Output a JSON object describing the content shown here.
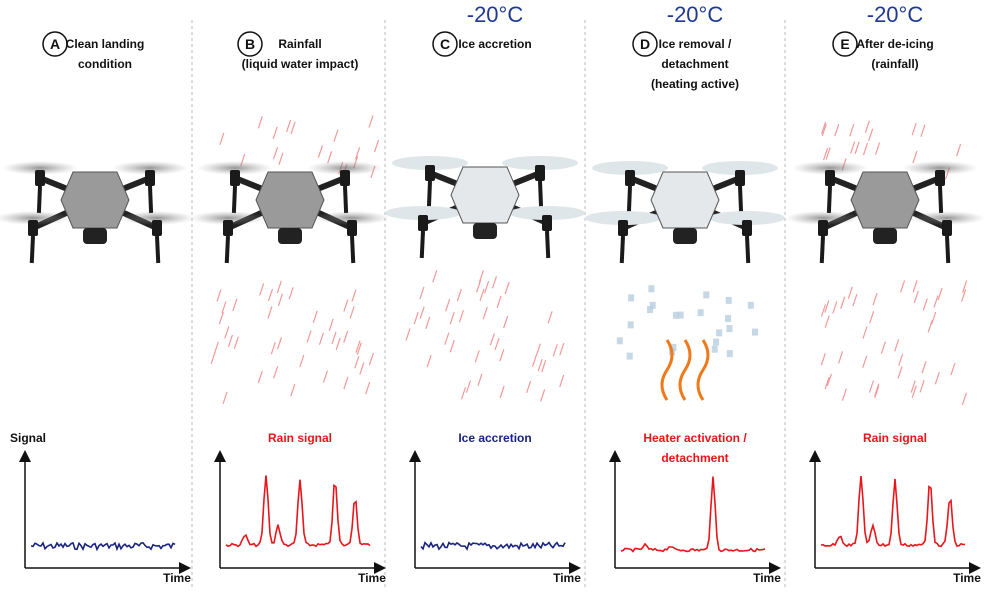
{
  "panels": [
    {
      "letter": "A",
      "title": [
        "Clean landing",
        "condition"
      ],
      "signal_label": "Signal",
      "time_label": "Time"
    },
    {
      "letter": "B",
      "title": [
        "Rainfall",
        "(liquid water impact)"
      ],
      "trace_label": [
        "Rain signal"
      ],
      "time_label": "Time"
    },
    {
      "letter": "C",
      "temperature": "-20°C",
      "title": [
        "Ice accretion"
      ],
      "trace_label": [
        "Ice accretion"
      ],
      "time_label": "Time"
    },
    {
      "letter": "D",
      "temperature": "-20°C",
      "title": [
        "Ice removal /",
        "detachment",
        "(heating active)"
      ],
      "trace_label": [
        "Heater activation /",
        "detachment"
      ],
      "time_label": "Time"
    },
    {
      "letter": "E",
      "temperature": "-20°C",
      "title": [
        "After de-icing",
        "(rainfall)"
      ],
      "trace_label": [
        "Rain signal"
      ],
      "time_label": "Time"
    }
  ]
}
